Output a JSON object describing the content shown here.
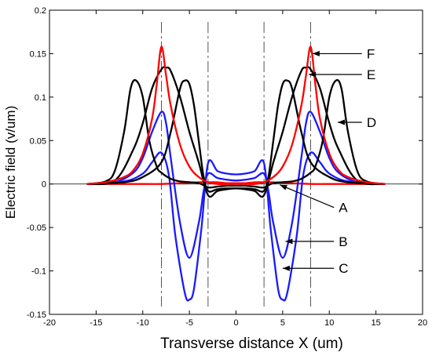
{
  "chart_data": {
    "type": "line",
    "xlabel": "Transverse distance X (um)",
    "ylabel": "Electric field (v/um)",
    "xlim": [
      -20,
      20
    ],
    "ylim": [
      -0.15,
      0.2
    ],
    "xticks": [
      -20,
      -15,
      -10,
      -5,
      0,
      5,
      10,
      15,
      20
    ],
    "yticks": [
      -0.15,
      -0.1,
      -0.05,
      0,
      0.05,
      0.1,
      0.15,
      0.2
    ],
    "xtick_labels": [
      "-20",
      "-15",
      "-10",
      "-5",
      "0",
      "5",
      "10",
      "15",
      "20"
    ],
    "ytick_labels": [
      "-0.15",
      "-0.1",
      "-0.05",
      "0",
      "0.05",
      "0.1",
      "0.15",
      "0.2"
    ],
    "grid": false,
    "reference_lines_x": [
      -8,
      -3,
      3,
      8
    ],
    "series": [
      {
        "name": "A",
        "color": "#ff0000",
        "x": [
          -16,
          -10,
          -8,
          -6,
          -4,
          -3,
          -2,
          -1,
          0,
          1,
          2,
          3,
          4,
          6,
          8,
          10,
          16
        ],
        "y": [
          0,
          0,
          0,
          0.001,
          0.002,
          0.002,
          0.002,
          0.001,
          0.001,
          0.001,
          0.002,
          0.002,
          0.002,
          0.001,
          0,
          0,
          0
        ]
      },
      {
        "name": "B",
        "color": "#1a1aff",
        "x": [
          -16,
          -13,
          -11,
          -10,
          -9,
          -8,
          -7.5,
          -7,
          -6,
          -5,
          -4,
          -3.5,
          -3,
          -2,
          -1,
          0,
          1,
          2,
          3,
          3.5,
          4,
          5,
          6,
          7,
          7.5,
          8,
          9,
          10,
          11,
          13,
          16
        ],
        "y": [
          0,
          0.002,
          0.013,
          0.03,
          0.06,
          0.083,
          0.07,
          0.03,
          -0.045,
          -0.085,
          -0.045,
          -0.01,
          0.012,
          0.007,
          0.005,
          0.004,
          0.005,
          0.007,
          0.012,
          -0.01,
          -0.045,
          -0.085,
          -0.045,
          0.03,
          0.07,
          0.083,
          0.06,
          0.03,
          0.013,
          0.002,
          0
        ]
      },
      {
        "name": "C",
        "color": "#1a1aff",
        "x": [
          -16,
          -12,
          -10,
          -9,
          -8,
          -7.2,
          -6.5,
          -5.5,
          -5,
          -4.5,
          -3.7,
          -3,
          -2,
          -1,
          0,
          1,
          2,
          3,
          3.7,
          4.5,
          5,
          5.5,
          6.5,
          7.2,
          8,
          9,
          10,
          12,
          16
        ],
        "y": [
          0,
          0.003,
          0.012,
          0.025,
          0.036,
          0.01,
          -0.06,
          -0.125,
          -0.133,
          -0.12,
          -0.05,
          0.024,
          0.015,
          0.012,
          0.011,
          0.012,
          0.015,
          0.024,
          -0.05,
          -0.12,
          -0.133,
          -0.125,
          -0.06,
          0.01,
          0.036,
          0.025,
          0.012,
          0.003,
          0
        ]
      },
      {
        "name": "D",
        "color": "#000000",
        "x": [
          -16,
          -14,
          -13,
          -12,
          -11.3,
          -10.7,
          -10,
          -9.3,
          -8.5,
          -8,
          -7,
          -6,
          -4,
          -3,
          -2,
          -1,
          0,
          1,
          2,
          3,
          4,
          6,
          7,
          8,
          8.5,
          9.3,
          10,
          10.7,
          11.3,
          12,
          13,
          14,
          16
        ],
        "y": [
          0,
          0.003,
          0.015,
          0.06,
          0.11,
          0.119,
          0.1,
          0.05,
          0.02,
          0.013,
          0.006,
          0.003,
          0.001,
          -0.004,
          -0.003,
          -0.002,
          -0.002,
          -0.002,
          -0.003,
          -0.004,
          0.001,
          0.003,
          0.006,
          0.013,
          0.02,
          0.05,
          0.1,
          0.119,
          0.11,
          0.06,
          0.015,
          0.003,
          0
        ]
      },
      {
        "name": "E",
        "color": "#000000",
        "x": [
          -16,
          -13,
          -11,
          -10,
          -9,
          -8,
          -7.5,
          -7,
          -6,
          -5,
          -4,
          -3,
          -2,
          -1,
          0,
          1,
          2,
          3,
          4,
          5,
          6,
          7,
          7.5,
          8,
          9,
          10,
          11,
          13,
          16
        ],
        "y": [
          0,
          0.004,
          0.04,
          0.07,
          0.11,
          0.132,
          0.134,
          0.13,
          0.1,
          0.06,
          0.025,
          -0.013,
          -0.008,
          -0.006,
          -0.005,
          -0.006,
          -0.008,
          -0.013,
          0.025,
          0.06,
          0.1,
          0.13,
          0.134,
          0.132,
          0.11,
          0.07,
          0.04,
          0.004,
          0
        ]
      },
      {
        "name": "",
        "color": "#000000",
        "x": [
          -16,
          -12,
          -10,
          -8,
          -7,
          -6,
          -5.5,
          -5,
          -4.5,
          -4,
          -3.5,
          -3,
          -2,
          -1,
          0,
          1,
          2,
          3,
          3.5,
          4,
          4.5,
          5,
          5.5,
          6,
          7,
          8,
          10,
          12,
          16
        ],
        "y": [
          0,
          0.002,
          0.008,
          0.025,
          0.06,
          0.11,
          0.119,
          0.115,
          0.09,
          0.05,
          0.01,
          -0.008,
          -0.006,
          -0.005,
          -0.005,
          -0.005,
          -0.006,
          -0.008,
          0.01,
          0.05,
          0.09,
          0.115,
          0.119,
          0.11,
          0.06,
          0.025,
          0.008,
          0.002,
          0
        ]
      },
      {
        "name": "F",
        "color": "#ff0000",
        "x": [
          -16,
          -14,
          -12,
          -11,
          -10,
          -9,
          -8.5,
          -8,
          -7.5,
          -7,
          -6,
          -5,
          -4,
          -3,
          -2,
          -1,
          0,
          1,
          2,
          3,
          4,
          5,
          6,
          7,
          7.5,
          8,
          8.5,
          9,
          10,
          11,
          12,
          14,
          16
        ],
        "y": [
          0,
          0.002,
          0.008,
          0.016,
          0.035,
          0.075,
          0.115,
          0.158,
          0.125,
          0.09,
          0.045,
          0.02,
          0.008,
          0.002,
          0,
          0,
          0,
          0,
          0,
          0.002,
          0.008,
          0.02,
          0.045,
          0.09,
          0.125,
          0.158,
          0.115,
          0.075,
          0.035,
          0.016,
          0.008,
          0.002,
          0
        ]
      }
    ],
    "annotations": [
      {
        "label": "F",
        "tip": [
          8.2,
          0.15
        ],
        "tail": [
          13.5,
          0.15
        ]
      },
      {
        "label": "E",
        "tip": [
          7.8,
          0.126
        ],
        "tail": [
          13.5,
          0.126
        ]
      },
      {
        "label": "D",
        "tip": [
          10.9,
          0.071
        ],
        "tail": [
          13.5,
          0.071
        ]
      },
      {
        "label": "A",
        "tip": [
          4.7,
          -0.001
        ],
        "tail": [
          10.5,
          -0.027
        ]
      },
      {
        "label": "B",
        "tip": [
          5.3,
          -0.066
        ],
        "tail": [
          10.5,
          -0.066
        ]
      },
      {
        "label": "C",
        "tip": [
          5.0,
          -0.097
        ],
        "tail": [
          10.5,
          -0.097
        ]
      }
    ]
  }
}
